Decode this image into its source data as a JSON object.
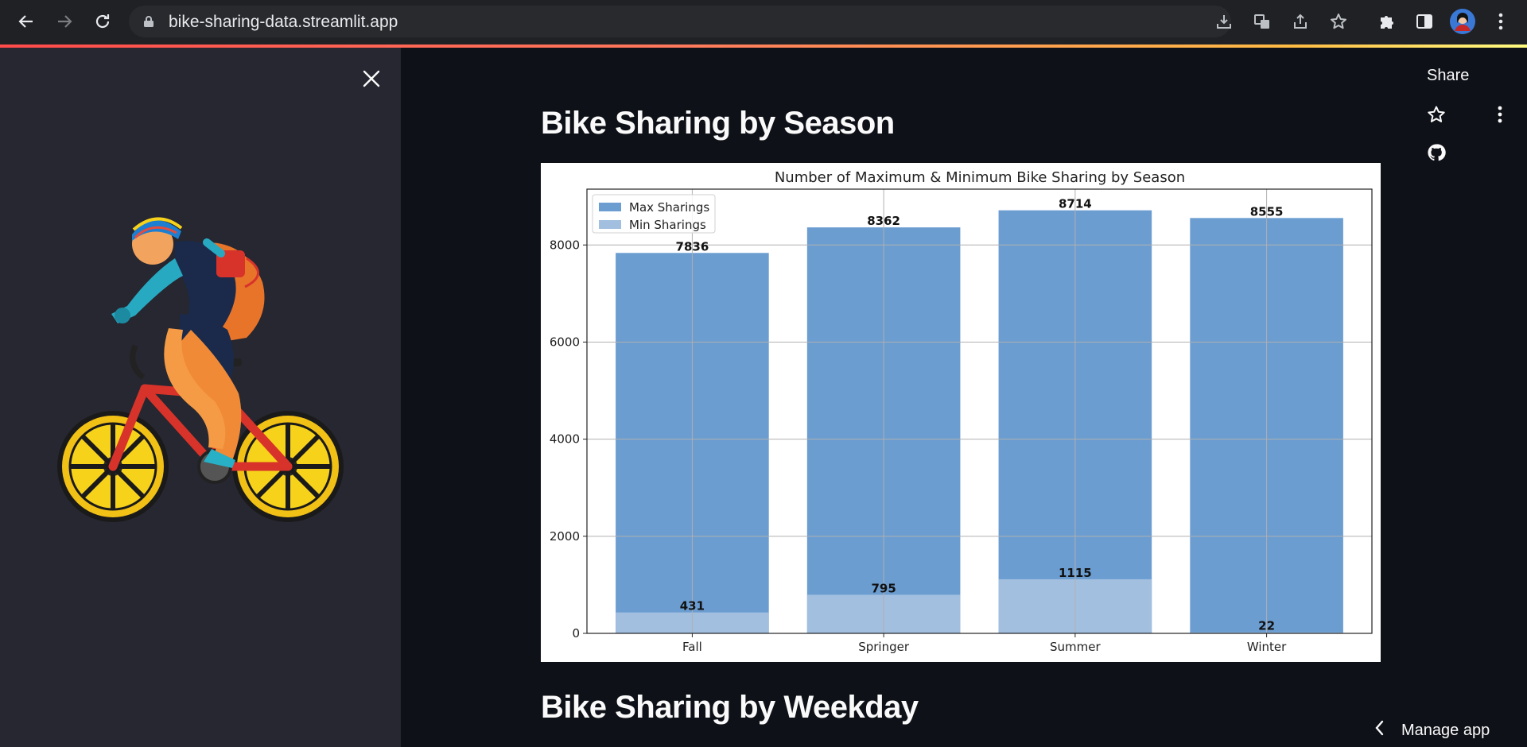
{
  "browser": {
    "url": "bike-sharing-data.streamlit.app"
  },
  "toolbar": {
    "share_label": "Share",
    "manage_app_label": "Manage app"
  },
  "main": {
    "section1_title": "Bike Sharing by Season",
    "section2_title": "Bike Sharing by Weekday"
  },
  "colors": {
    "accent_gradient_start": "#ff4b4b",
    "accent_gradient_end": "#fffd80",
    "max_bar": "#6b9dd1",
    "min_bar": "#a2bfdf"
  },
  "chart_data": {
    "type": "bar",
    "title": "Number of Maximum & Minimum Bike Sharing by Season",
    "categories": [
      "Fall",
      "Springer",
      "Summer",
      "Winter"
    ],
    "series": [
      {
        "name": "Max Sharings",
        "values": [
          7836,
          8362,
          8714,
          8555
        ]
      },
      {
        "name": "Min Sharings",
        "values": [
          431,
          795,
          1115,
          22
        ]
      }
    ],
    "yticks": [
      0,
      2000,
      4000,
      6000,
      8000
    ],
    "ylim": [
      0,
      9150
    ],
    "grid": true,
    "legend": "top-left",
    "xlabel": "",
    "ylabel": ""
  }
}
